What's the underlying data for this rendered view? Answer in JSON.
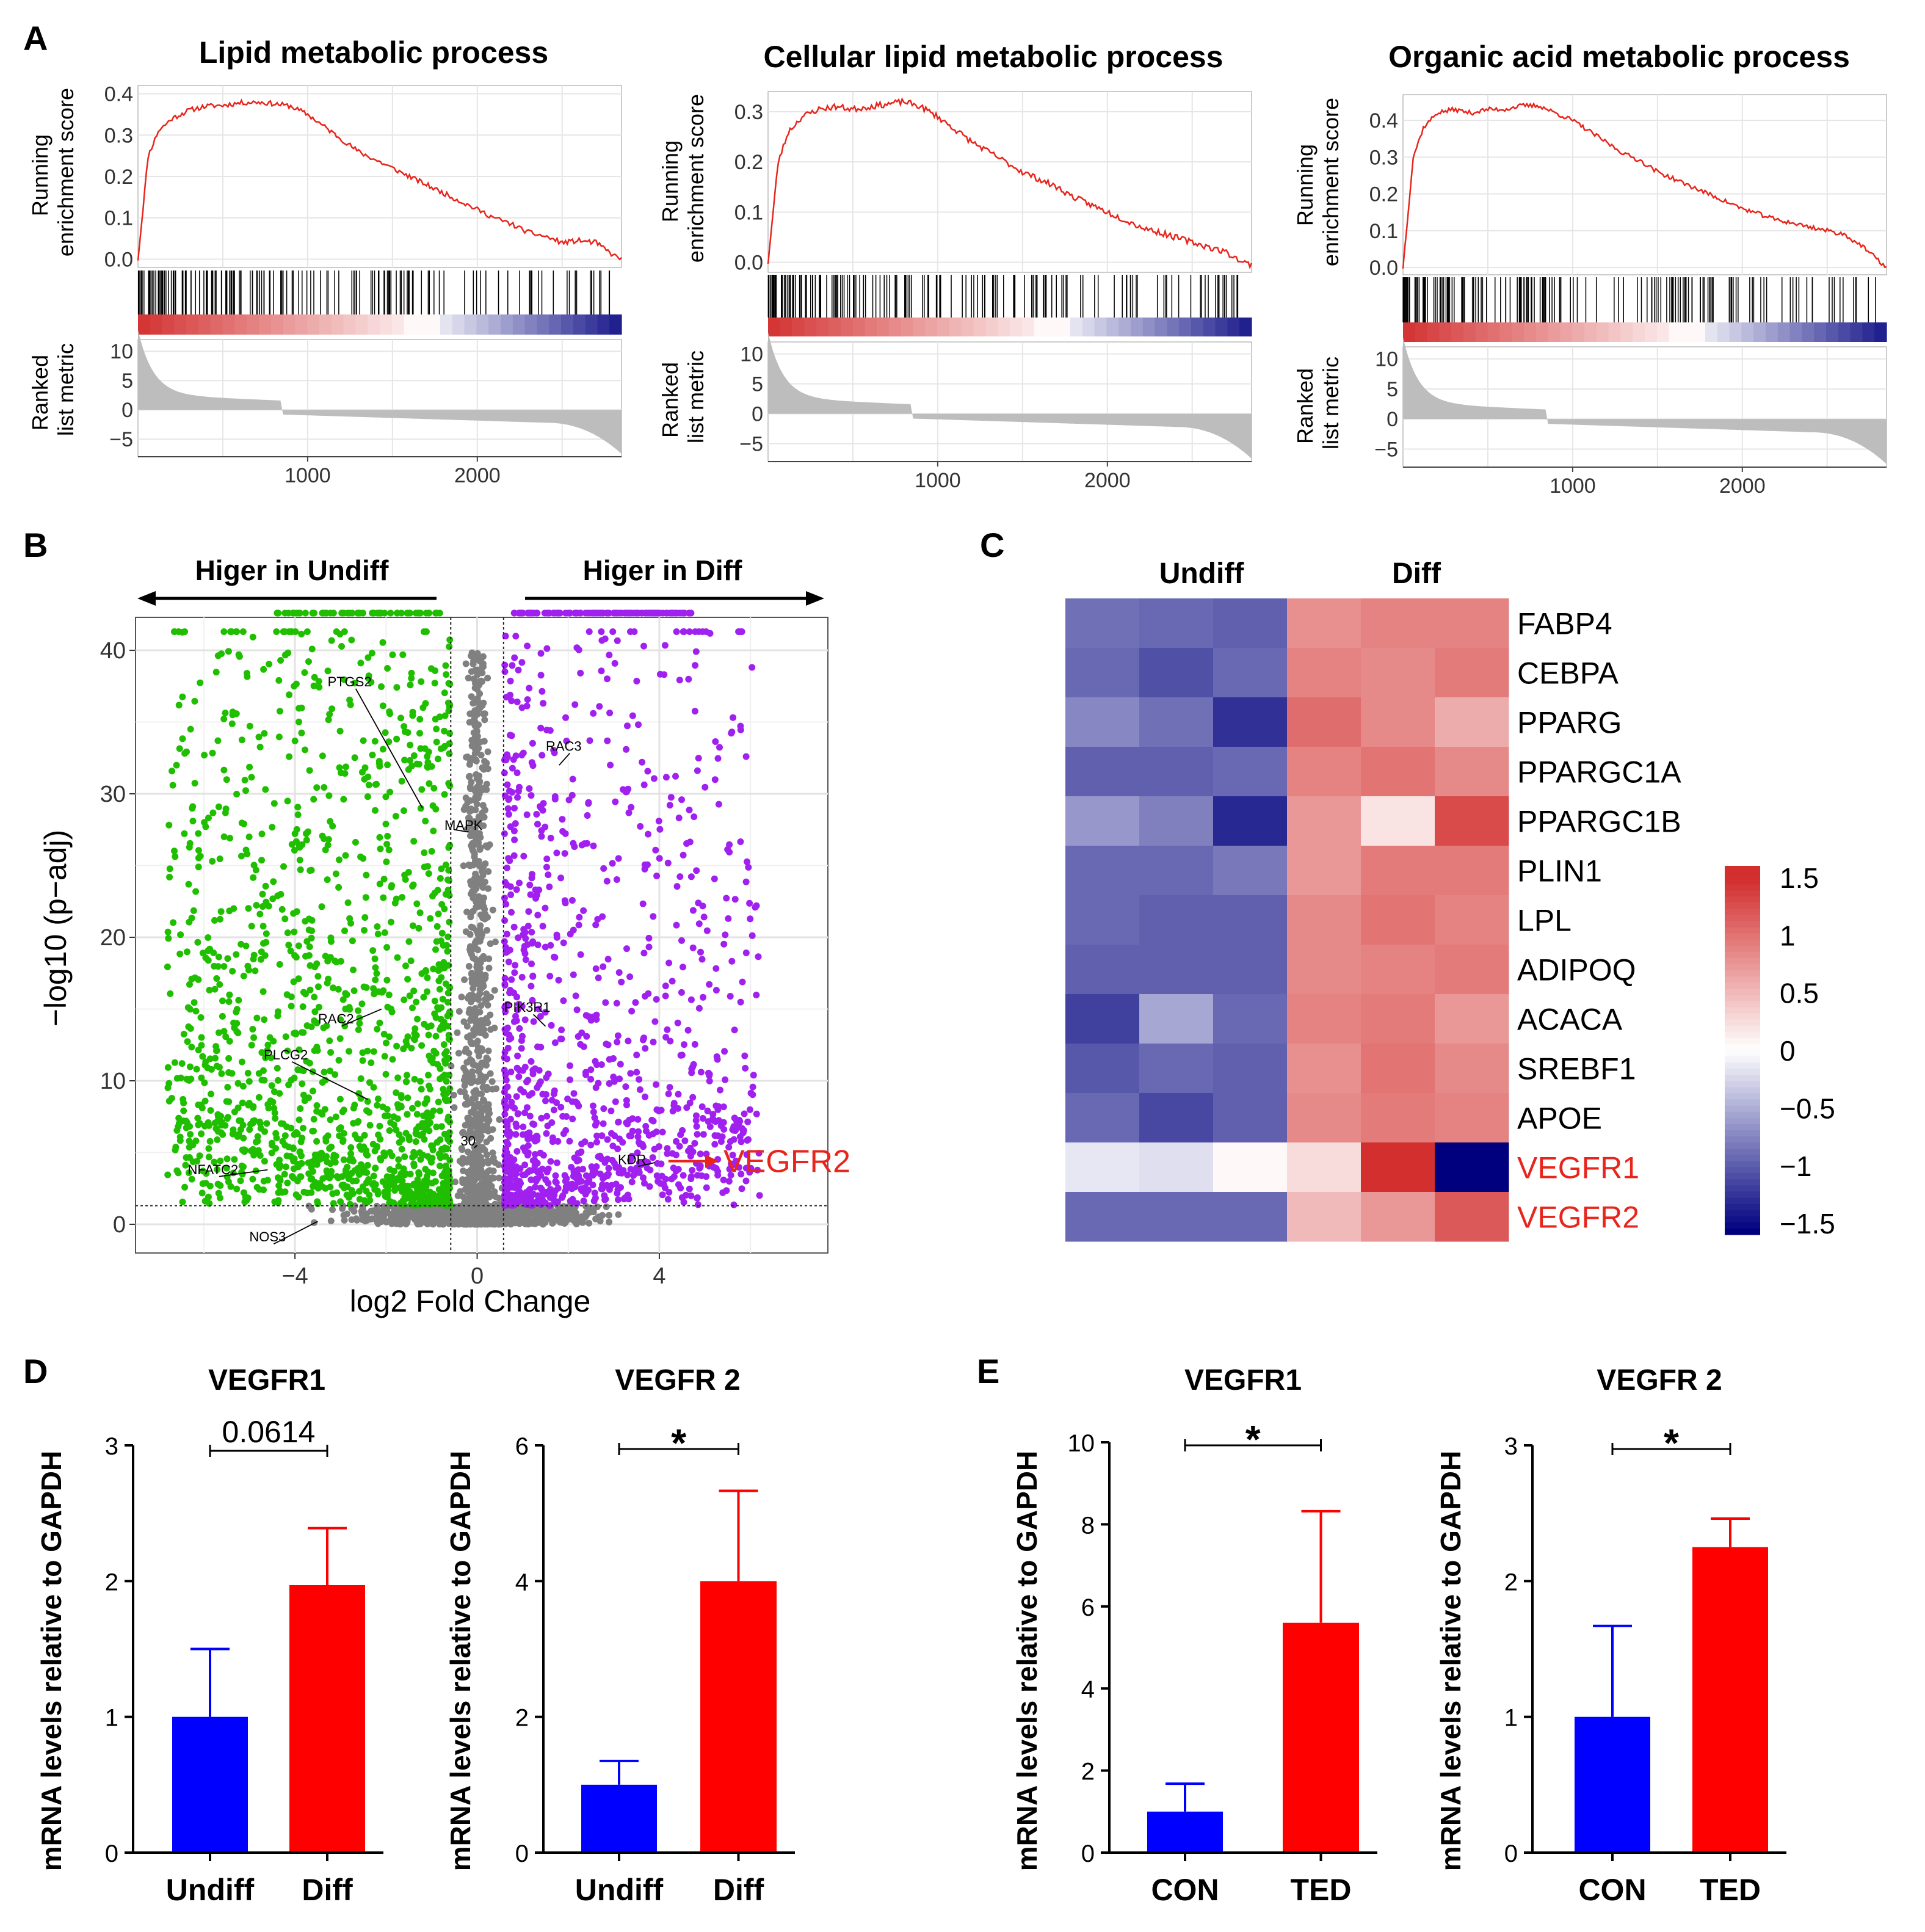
{
  "colors": {
    "red": "#ff0000",
    "blue": "#0000ff",
    "gsea_line": "#e8251c",
    "volcano_up": "#a020f0",
    "volcano_down": "#1fbf00",
    "volcano_ns": "#808080",
    "heat_high": "#d32f2f",
    "heat_low": "#00007f",
    "heat_mid": "#ffffff",
    "highlight": "#e8251c",
    "axis": "#000000"
  },
  "panel_labels": {
    "a": "A",
    "b": "B",
    "c": "C",
    "d": "D",
    "e": "E"
  },
  "chart_data": [
    {
      "id": "gsea-1",
      "type": "line",
      "title": "Lipid metabolic process",
      "ylabel": [
        "Running",
        "enrichment score"
      ],
      "ylabel2": [
        "Ranked",
        "list metric"
      ],
      "es_ticks": [
        0.0,
        0.1,
        0.2,
        0.3,
        0.4
      ],
      "es_ylim": [
        -0.02,
        0.42
      ],
      "es_tick_labels": [
        "0.0",
        "0.1",
        "0.2",
        "0.3",
        "0.4"
      ],
      "rank_ticks": [
        10,
        5,
        0,
        -5
      ],
      "rank_tick_labels": [
        "10",
        "5",
        "0",
        "−5"
      ],
      "x_ticks": [
        1000,
        2000
      ],
      "x_tick_labels": [
        "1000",
        "2000"
      ],
      "xlim": [
        0,
        2850
      ],
      "es_curve": [
        [
          0,
          0.0
        ],
        [
          60,
          0.25
        ],
        [
          120,
          0.31
        ],
        [
          200,
          0.34
        ],
        [
          300,
          0.36
        ],
        [
          400,
          0.37
        ],
        [
          500,
          0.372
        ],
        [
          600,
          0.378
        ],
        [
          700,
          0.38
        ],
        [
          800,
          0.376
        ],
        [
          900,
          0.37
        ],
        [
          1000,
          0.35
        ],
        [
          1100,
          0.32
        ],
        [
          1200,
          0.29
        ],
        [
          1300,
          0.26
        ],
        [
          1400,
          0.24
        ],
        [
          1500,
          0.22
        ],
        [
          1600,
          0.2
        ],
        [
          1700,
          0.18
        ],
        [
          1800,
          0.16
        ],
        [
          1900,
          0.14
        ],
        [
          2000,
          0.12
        ],
        [
          2100,
          0.1
        ],
        [
          2200,
          0.085
        ],
        [
          2300,
          0.065
        ],
        [
          2400,
          0.055
        ],
        [
          2500,
          0.04
        ],
        [
          2600,
          0.045
        ],
        [
          2700,
          0.04
        ],
        [
          2800,
          0.01
        ],
        [
          2850,
          0.0
        ]
      ]
    },
    {
      "id": "gsea-2",
      "type": "line",
      "title": "Cellular lipid metabolic process",
      "ylabel": [
        "Running",
        "enrichment score"
      ],
      "ylabel2": [
        "Ranked",
        "list metric"
      ],
      "es_ticks": [
        0.0,
        0.1,
        0.2,
        0.3
      ],
      "es_ylim": [
        -0.02,
        0.34
      ],
      "es_tick_labels": [
        "0.0",
        "0.1",
        "0.2",
        "0.3"
      ],
      "rank_ticks": [
        10,
        5,
        0,
        -5
      ],
      "rank_tick_labels": [
        "10",
        "5",
        "0",
        "−5"
      ],
      "x_ticks": [
        1000,
        2000
      ],
      "x_tick_labels": [
        "1000",
        "2000"
      ],
      "xlim": [
        0,
        2850
      ],
      "es_curve": [
        [
          0,
          0.0
        ],
        [
          60,
          0.2
        ],
        [
          120,
          0.26
        ],
        [
          200,
          0.29
        ],
        [
          300,
          0.305
        ],
        [
          400,
          0.31
        ],
        [
          500,
          0.305
        ],
        [
          600,
          0.31
        ],
        [
          700,
          0.315
        ],
        [
          800,
          0.32
        ],
        [
          900,
          0.31
        ],
        [
          1000,
          0.29
        ],
        [
          1100,
          0.265
        ],
        [
          1200,
          0.24
        ],
        [
          1300,
          0.22
        ],
        [
          1400,
          0.2
        ],
        [
          1500,
          0.18
        ],
        [
          1600,
          0.165
        ],
        [
          1700,
          0.15
        ],
        [
          1800,
          0.13
        ],
        [
          1900,
          0.115
        ],
        [
          2000,
          0.1
        ],
        [
          2100,
          0.085
        ],
        [
          2200,
          0.07
        ],
        [
          2300,
          0.06
        ],
        [
          2400,
          0.05
        ],
        [
          2500,
          0.04
        ],
        [
          2600,
          0.03
        ],
        [
          2700,
          0.02
        ],
        [
          2800,
          0.0
        ],
        [
          2850,
          -0.005
        ]
      ]
    },
    {
      "id": "gsea-3",
      "type": "line",
      "title": "Organic acid metabolic process",
      "ylabel": [
        "Running",
        "enrichment score"
      ],
      "ylabel2": [
        "Ranked",
        "list metric"
      ],
      "es_ticks": [
        0.0,
        0.1,
        0.2,
        0.3,
        0.4
      ],
      "es_ylim": [
        -0.02,
        0.47
      ],
      "es_tick_labels": [
        "0.0",
        "0.1",
        "0.2",
        "0.3",
        "0.4"
      ],
      "rank_ticks": [
        10,
        5,
        0,
        -5
      ],
      "rank_tick_labels": [
        "10",
        "5",
        "0",
        "−5"
      ],
      "x_ticks": [
        1000,
        2000
      ],
      "x_tick_labels": [
        "1000",
        "2000"
      ],
      "xlim": [
        0,
        2850
      ],
      "es_curve": [
        [
          0,
          0.0
        ],
        [
          60,
          0.3
        ],
        [
          120,
          0.38
        ],
        [
          200,
          0.42
        ],
        [
          300,
          0.43
        ],
        [
          400,
          0.42
        ],
        [
          500,
          0.43
        ],
        [
          600,
          0.43
        ],
        [
          700,
          0.44
        ],
        [
          800,
          0.44
        ],
        [
          900,
          0.42
        ],
        [
          1000,
          0.4
        ],
        [
          1100,
          0.37
        ],
        [
          1200,
          0.34
        ],
        [
          1300,
          0.31
        ],
        [
          1400,
          0.29
        ],
        [
          1500,
          0.26
        ],
        [
          1600,
          0.24
        ],
        [
          1700,
          0.22
        ],
        [
          1800,
          0.2
        ],
        [
          1900,
          0.18
        ],
        [
          2000,
          0.16
        ],
        [
          2100,
          0.145
        ],
        [
          2200,
          0.13
        ],
        [
          2300,
          0.12
        ],
        [
          2400,
          0.11
        ],
        [
          2500,
          0.1
        ],
        [
          2600,
          0.09
        ],
        [
          2700,
          0.06
        ],
        [
          2800,
          0.02
        ],
        [
          2850,
          0.0
        ]
      ]
    },
    {
      "id": "volcano",
      "type": "scatter",
      "header_left": "Higer in Undiff",
      "header_right": "Higer in Diff",
      "xlabel": "log2 Fold Change",
      "ylabel": "−log10 (p−adj)",
      "xlim": [
        -7.5,
        7.7
      ],
      "ylim": [
        -2,
        42.3
      ],
      "x_ticks": [
        -4,
        0,
        4
      ],
      "x_tick_labels": [
        "−4",
        "0",
        "4"
      ],
      "y_ticks": [
        0,
        10,
        20,
        30,
        40
      ],
      "y_tick_labels": [
        "0",
        "10",
        "20",
        "30",
        "40"
      ],
      "fc_threshold": 0.58,
      "p_threshold": 1.3,
      "gene_labels": [
        {
          "text": "PTGS2",
          "x": -2.8,
          "y": 37.5,
          "tx": -1.2,
          "ty": 29
        },
        {
          "text": "MAPK",
          "x": -0.3,
          "y": 27.5,
          "tx": -0.5,
          "ty": 27.5
        },
        {
          "text": "RAC3",
          "x": 1.9,
          "y": 33,
          "tx": 1.8,
          "ty": 32
        },
        {
          "text": "RAC2",
          "x": -3.1,
          "y": 14,
          "tx": -2.1,
          "ty": 15
        },
        {
          "text": "PIK3R1",
          "x": 1.1,
          "y": 14.8,
          "tx": 1.5,
          "ty": 13.8
        },
        {
          "text": "PLCG2",
          "x": -4.2,
          "y": 11.5,
          "tx": -2.4,
          "ty": 8.7
        },
        {
          "text": "NFATC2",
          "x": -5.8,
          "y": 3.5,
          "tx": -4.6,
          "ty": 3.8
        },
        {
          "text": "KDR",
          "x": 3.4,
          "y": 4.2,
          "tx": 3.9,
          "ty": 4.3
        },
        {
          "text": "NOS3",
          "x": -4.6,
          "y": -1.2,
          "tx": -3.5,
          "ty": 0.2
        },
        {
          "text": "30",
          "x": -0.2,
          "y": 5.5,
          "tx": 0,
          "ty": 5.5
        }
      ],
      "highlight": {
        "text": "VEGFR2",
        "x_from": 4.2,
        "x_to": 5.3,
        "y": 4.4
      }
    },
    {
      "id": "heatmap",
      "type": "heatmap",
      "col_groups": [
        "Undiff",
        "Diff"
      ],
      "rows": [
        "FABP4",
        "CEBPA",
        "PPARG",
        "PPARGC1A",
        "PPARGC1B",
        "PLIN1",
        "LPL",
        "ADIPOQ",
        "ACACA",
        "SREBF1",
        "APOE",
        "VEGFR1",
        "VEGFR2"
      ],
      "highlight_rows": [
        "VEGFR1",
        "VEGFR2"
      ],
      "values": [
        [
          -0.9,
          -0.95,
          -1.0,
          0.8,
          0.9,
          0.9
        ],
        [
          -0.95,
          -1.1,
          -0.95,
          0.9,
          0.85,
          0.95
        ],
        [
          -0.75,
          -0.9,
          -1.3,
          1.05,
          0.85,
          0.6
        ],
        [
          -1.0,
          -1.0,
          -0.95,
          0.9,
          1.0,
          0.85
        ],
        [
          -0.65,
          -0.8,
          -1.35,
          0.75,
          0.2,
          1.3
        ],
        [
          -0.95,
          -0.95,
          -0.85,
          0.75,
          0.95,
          0.95
        ],
        [
          -0.95,
          -1.0,
          -1.0,
          0.85,
          1.0,
          0.9
        ],
        [
          -1.0,
          -1.0,
          -1.0,
          0.85,
          0.9,
          0.95
        ],
        [
          -1.2,
          -0.55,
          -0.95,
          0.9,
          0.95,
          0.75
        ],
        [
          -1.05,
          -0.95,
          -1.0,
          0.8,
          1.0,
          0.85
        ],
        [
          -0.95,
          -1.15,
          -1.0,
          0.85,
          0.95,
          0.9
        ],
        [
          -0.15,
          -0.2,
          0.05,
          0.25,
          1.5,
          -1.6
        ],
        [
          -0.95,
          -0.95,
          -0.95,
          0.5,
          0.75,
          1.2
        ]
      ],
      "scale_ticks": [
        1.5,
        1,
        0.5,
        0,
        -0.5,
        -1,
        -1.5
      ],
      "scale_tick_labels": [
        "1.5",
        "1",
        "0.5",
        "0",
        "−0.5",
        "−1",
        "−1.5"
      ]
    },
    {
      "id": "bar-d1",
      "type": "bar",
      "title": "VEGFR1",
      "ylabel": "mRNA levels relative to GAPDH",
      "categories": [
        "Undiff",
        "Diff"
      ],
      "values": [
        1.0,
        1.97
      ],
      "errors": [
        0.5,
        0.42
      ],
      "ylim": [
        0,
        3
      ],
      "y_ticks": [
        0,
        1,
        2,
        3
      ],
      "y_tick_labels": [
        "0",
        "1",
        "2",
        "3"
      ],
      "significance": "0.0614"
    },
    {
      "id": "bar-d2",
      "type": "bar",
      "title": "VEGFR 2",
      "ylabel": "mRNA levels relative to GAPDH",
      "categories": [
        "Undiff",
        "Diff"
      ],
      "values": [
        1.0,
        4.0
      ],
      "errors": [
        0.35,
        1.33
      ],
      "ylim": [
        0,
        6
      ],
      "y_ticks": [
        0,
        2,
        4,
        6
      ],
      "y_tick_labels": [
        "0",
        "2",
        "4",
        "6"
      ],
      "significance": "*"
    },
    {
      "id": "bar-e1",
      "type": "bar",
      "title": "VEGFR1",
      "ylabel": "mRNA levels relative to GAPDH",
      "categories": [
        "CON",
        "TED"
      ],
      "values": [
        1.0,
        5.6
      ],
      "errors": [
        0.68,
        2.72
      ],
      "ylim": [
        0,
        10
      ],
      "y_ticks": [
        0,
        2,
        4,
        6,
        8,
        10
      ],
      "y_tick_labels": [
        "0",
        "2",
        "4",
        "6",
        "8",
        "10"
      ],
      "significance": "*"
    },
    {
      "id": "bar-e2",
      "type": "bar",
      "title": "VEGFR 2",
      "ylabel": "mRNA levels relative to GAPDH",
      "categories": [
        "CON",
        "TED"
      ],
      "values": [
        1.0,
        2.25
      ],
      "errors": [
        0.67,
        0.21
      ],
      "ylim": [
        0,
        3
      ],
      "y_ticks": [
        0,
        1,
        2,
        3
      ],
      "y_tick_labels": [
        "0",
        "1",
        "2",
        "3"
      ],
      "significance": "*"
    }
  ]
}
